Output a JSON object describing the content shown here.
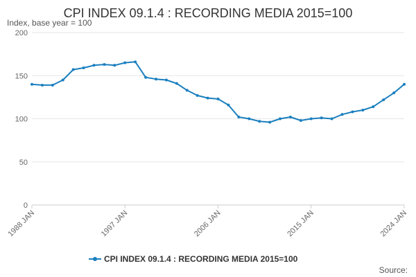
{
  "chart_data": {
    "type": "line",
    "title": "CPI INDEX 09.1.4 : RECORDING MEDIA 2015=100",
    "ylabel": "Index, base year = 100",
    "xlabel": "",
    "source": "Source:",
    "ylim": [
      0,
      200
    ],
    "xlim": [
      1988.0,
      2024.0
    ],
    "y_ticks": [
      0,
      50,
      100,
      150,
      200
    ],
    "x_ticks": [
      {
        "label": "1988 JAN",
        "value": 1988.0
      },
      {
        "label": "1997 JAN",
        "value": 1997.0
      },
      {
        "label": "2006 JAN",
        "value": 2006.0
      },
      {
        "label": "2015 JAN",
        "value": 2015.0
      },
      {
        "label": "2024 JAN",
        "value": 2024.0
      }
    ],
    "grid": true,
    "legend_position": "bottom-center",
    "color": "#1a7fbf",
    "series": [
      {
        "name": "CPI INDEX 09.1.4 : RECORDING MEDIA 2015=100",
        "x": [
          1988.0,
          1989.0,
          1990.0,
          1991.0,
          1992.0,
          1993.0,
          1994.0,
          1995.0,
          1996.0,
          1997.0,
          1998.0,
          1999.0,
          2000.0,
          2001.0,
          2002.0,
          2003.0,
          2004.0,
          2005.0,
          2006.0,
          2007.0,
          2008.0,
          2009.0,
          2010.0,
          2011.0,
          2012.0,
          2013.0,
          2014.0,
          2015.0,
          2016.0,
          2017.0,
          2018.0,
          2019.0,
          2020.0,
          2021.0,
          2022.0,
          2023.0,
          2024.0
        ],
        "values": [
          140,
          139,
          139,
          145,
          157,
          159,
          162,
          163,
          162,
          165,
          166,
          148,
          146,
          145,
          141,
          133,
          127,
          124,
          123,
          116,
          102,
          100,
          97,
          96,
          100,
          102,
          98,
          100,
          101,
          100,
          105,
          108,
          110,
          114,
          122,
          130,
          140
        ]
      }
    ]
  }
}
